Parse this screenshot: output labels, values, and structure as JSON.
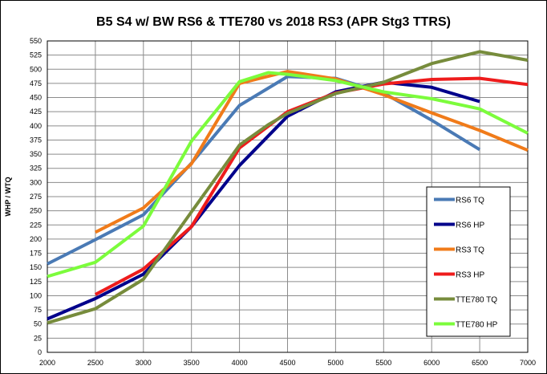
{
  "chart_data": {
    "type": "line",
    "title": "B5 S4 w/ BW RS6 & TTE780 vs 2018 RS3 (APR Stg3 TTRS)",
    "xlabel": "",
    "ylabel": "WHP / WTQ",
    "xlim": [
      2000,
      7000
    ],
    "ylim": [
      0,
      550
    ],
    "x_ticks": [
      2000,
      2500,
      3000,
      3500,
      4000,
      4500,
      5000,
      5500,
      6000,
      6500,
      7000
    ],
    "y_ticks": [
      0,
      25,
      50,
      75,
      100,
      125,
      150,
      175,
      200,
      225,
      250,
      275,
      300,
      325,
      350,
      375,
      400,
      425,
      450,
      475,
      500,
      525,
      550
    ],
    "grid": true,
    "legend_position": "right",
    "series": [
      {
        "name": "RS6 TQ",
        "color": "#4a7ab5",
        "points": [
          [
            2000,
            156
          ],
          [
            2500,
            199
          ],
          [
            3000,
            243
          ],
          [
            3500,
            334
          ],
          [
            4000,
            436
          ],
          [
            4500,
            487
          ],
          [
            5000,
            484
          ],
          [
            5500,
            458
          ],
          [
            6000,
            410
          ],
          [
            6500,
            358
          ]
        ]
      },
      {
        "name": "RS6 HP",
        "color": "#00008b",
        "points": [
          [
            2000,
            59
          ],
          [
            2500,
            95
          ],
          [
            3000,
            138
          ],
          [
            3500,
            222
          ],
          [
            4000,
            330
          ],
          [
            4500,
            417
          ],
          [
            5000,
            460
          ],
          [
            5500,
            477
          ],
          [
            6000,
            468
          ],
          [
            6500,
            443
          ]
        ]
      },
      {
        "name": "RS3 TQ",
        "color": "#f07b1a",
        "points": [
          [
            2500,
            212
          ],
          [
            3000,
            255
          ],
          [
            3500,
            333
          ],
          [
            4000,
            475
          ],
          [
            4500,
            496
          ],
          [
            5000,
            483
          ],
          [
            5500,
            455
          ],
          [
            6000,
            423
          ],
          [
            6500,
            392
          ],
          [
            7000,
            357
          ]
        ]
      },
      {
        "name": "RS3 HP",
        "color": "#ee1c1c",
        "points": [
          [
            2500,
            102
          ],
          [
            3000,
            147
          ],
          [
            3500,
            222
          ],
          [
            4000,
            361
          ],
          [
            4500,
            425
          ],
          [
            5000,
            458
          ],
          [
            5500,
            474
          ],
          [
            6000,
            482
          ],
          [
            6500,
            484
          ],
          [
            7000,
            473
          ]
        ]
      },
      {
        "name": "TTE780 TQ",
        "color": "#778c3c",
        "points": [
          [
            2000,
            52
          ],
          [
            2500,
            77
          ],
          [
            3000,
            129
          ],
          [
            3500,
            248
          ],
          [
            4000,
            366
          ],
          [
            4300,
            402
          ],
          [
            4500,
            422
          ],
          [
            5000,
            457
          ],
          [
            5500,
            477
          ],
          [
            6000,
            510
          ],
          [
            6500,
            531
          ],
          [
            7000,
            516
          ]
        ]
      },
      {
        "name": "TTE780 HP",
        "color": "#7cfc3c",
        "points": [
          [
            2000,
            134
          ],
          [
            2500,
            159
          ],
          [
            3000,
            223
          ],
          [
            3500,
            373
          ],
          [
            4000,
            478
          ],
          [
            4300,
            494
          ],
          [
            4500,
            491
          ],
          [
            5000,
            480
          ],
          [
            5500,
            460
          ],
          [
            6000,
            448
          ],
          [
            6500,
            430
          ],
          [
            7000,
            387
          ]
        ]
      }
    ]
  }
}
